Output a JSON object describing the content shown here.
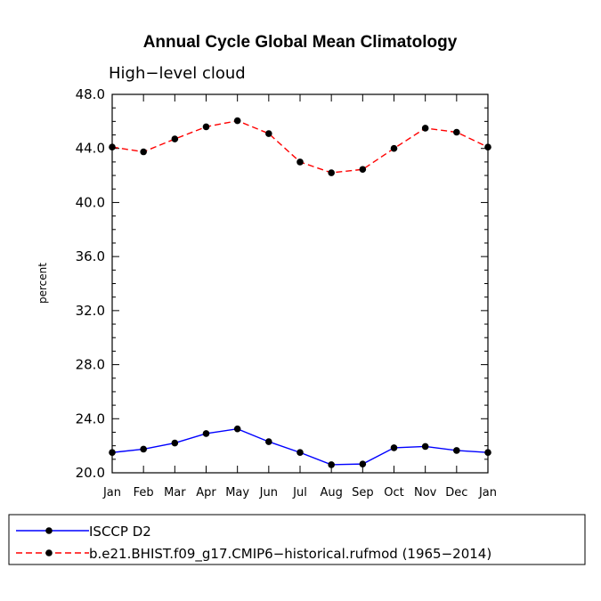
{
  "chart_data": {
    "type": "line",
    "title": "Annual Cycle Global Mean Climatology",
    "subtitle": "High−level cloud",
    "ylabel": "percent",
    "xlabel": "",
    "ylim": [
      20.0,
      48.0
    ],
    "yticks": [
      "20.0",
      "24.0",
      "28.0",
      "32.0",
      "36.0",
      "40.0",
      "44.0",
      "48.0"
    ],
    "yticks_values": [
      20,
      24,
      28,
      32,
      36,
      40,
      44,
      48
    ],
    "categories": [
      "Jan",
      "Feb",
      "Mar",
      "Apr",
      "May",
      "Jun",
      "Jul",
      "Aug",
      "Sep",
      "Oct",
      "Nov",
      "Dec",
      "Jan"
    ],
    "series": [
      {
        "name": "ISCCP D2",
        "color": "#0000ff",
        "dash": "solid",
        "values": [
          21.5,
          21.75,
          22.2,
          22.9,
          23.25,
          22.3,
          21.5,
          20.6,
          20.65,
          21.85,
          21.95,
          21.65,
          21.5
        ]
      },
      {
        "name": "b.e21.BHIST.f09_g17.CMIP6−historical.rufmod (1965−2014)",
        "color": "#ff0000",
        "dash": "dashed",
        "values": [
          44.1,
          43.75,
          44.7,
          45.6,
          46.05,
          45.1,
          43.0,
          42.2,
          42.45,
          44.0,
          45.5,
          45.2,
          44.1
        ]
      }
    ],
    "legend_position": "bottom-left"
  }
}
